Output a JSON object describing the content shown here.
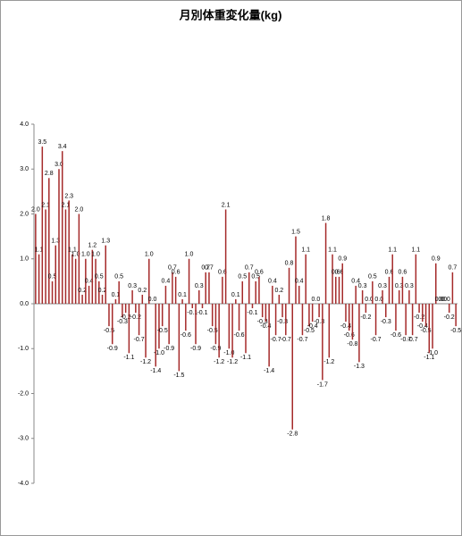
{
  "chart_data": {
    "type": "bar",
    "title": "月別体重変化量(kg)",
    "values": [
      2.0,
      1.1,
      3.5,
      2.1,
      2.8,
      0.5,
      1.3,
      3.0,
      3.4,
      2.1,
      2.3,
      1.1,
      1.0,
      2.0,
      0.2,
      1.0,
      0.4,
      1.2,
      1.0,
      0.5,
      0.2,
      1.3,
      -0.5,
      -0.9,
      0.1,
      0.5,
      -0.3,
      -0.2,
      -1.1,
      0.3,
      -0.2,
      -0.7,
      0.2,
      -1.2,
      1.0,
      0.0,
      -1.4,
      -1.0,
      -0.5,
      0.4,
      -0.9,
      0.7,
      0.6,
      -1.5,
      0.1,
      -0.6,
      1.0,
      -0.1,
      -0.9,
      0.3,
      -0.1,
      0.7,
      0.7,
      -0.5,
      -0.9,
      -1.2,
      0.6,
      2.1,
      -1.0,
      -1.2,
      0.1,
      -0.6,
      0.5,
      -1.1,
      0.7,
      -0.1,
      0.5,
      0.6,
      -0.3,
      -0.4,
      -1.4,
      0.4,
      -0.7,
      0.2,
      -0.3,
      -0.7,
      0.8,
      -2.8,
      1.5,
      0.4,
      -0.7,
      1.1,
      -0.5,
      -0.4,
      0.0,
      -0.3,
      -1.7,
      1.8,
      -1.2,
      1.1,
      0.6,
      0.6,
      0.9,
      -0.4,
      -0.6,
      -0.8,
      0.4,
      -1.3,
      0.3,
      -0.2,
      0.0,
      0.5,
      -0.7,
      0.0,
      0.3,
      -0.3,
      0.6,
      1.1,
      -0.6,
      0.3,
      0.6,
      -0.7,
      0.3,
      -0.7,
      1.1,
      -0.2,
      -0.4,
      -0.5,
      -1.1,
      -1.0,
      0.9,
      0.0,
      0.0,
      0.0,
      -0.2,
      0.7,
      -0.5
    ],
    "value_labels": [
      "2.0",
      "1.1",
      "3.5",
      "2.1",
      "2.8",
      "0.5",
      "1.3",
      "3.0",
      "3.4",
      "2.1",
      "2.3",
      "1.1",
      "1.0",
      "2.0",
      "0.2",
      "1.0",
      "0.4",
      "1.2",
      "1.0",
      "0.5",
      "0.2",
      "1.3",
      "-0.5",
      "-0.9",
      "0.1",
      "0.5",
      "-0.3",
      "-0.2",
      "-1.1",
      "0.3",
      "-0.2",
      "-0.7",
      "0.2",
      "-1.2",
      "1.0",
      "0.0",
      "-1.4",
      "-1.0",
      "-0.5",
      "0.4",
      "-0.9",
      "0.7",
      "0.6",
      "-1.5",
      "0.1",
      "-0.6",
      "1.0",
      "-0.1",
      "-0.9",
      "0.3",
      "-0.1",
      "0.7",
      "0.7",
      "-0.5",
      "-0.9",
      "-1.2",
      "0.6",
      "2.1",
      "-1.0",
      "-1.2",
      "0.1",
      "-0.6",
      "0.5",
      "-1.1",
      "0.7",
      "-0.1",
      "0.5",
      "0.6",
      "-0.3",
      "-0.4",
      "-1.4",
      "0.4",
      "-0.7",
      "0.2",
      "-0.3",
      "-0.7",
      "0.8",
      "-2.8",
      "1.5",
      "0.4",
      "-0.7",
      "1.1",
      "-0.5",
      "-0.4",
      "0.0",
      "-0.3",
      "-1.7",
      "1.8",
      "-1.2",
      "1.1",
      "0.6",
      "0.6",
      "0.9",
      "-0.4",
      "-0.6",
      "-0.8",
      "0.4",
      "-1.3",
      "0.3",
      "-0.2",
      "0.0",
      "0.5",
      "-0.7",
      "0.0",
      "0.3",
      "-0.3",
      "0.6",
      "1.1",
      "-0.6",
      "0.3",
      "0.6",
      "-0.7",
      "0.3",
      "-0.7",
      "1.1",
      "-0.2",
      "-0.4",
      "-0.5",
      "-1.1",
      "-1.0",
      "0.9",
      "0.0",
      "0.0",
      "0.0",
      "-0.2",
      "0.7",
      "-0.5"
    ],
    "color": "#a52a2a",
    "ylim": [
      -4,
      4
    ],
    "yticks": [
      {
        "value": -4,
        "label": "-4.0"
      },
      {
        "value": -3,
        "label": "-3.0"
      },
      {
        "value": -2,
        "label": "-2.0"
      },
      {
        "value": -1,
        "label": "-1.0"
      },
      {
        "value": 0,
        "label": "0.0"
      },
      {
        "value": 1,
        "label": "1.0"
      },
      {
        "value": 2,
        "label": "2.0"
      },
      {
        "value": 3,
        "label": "3.0"
      },
      {
        "value": 4,
        "label": "4.0"
      }
    ],
    "grid": false
  }
}
